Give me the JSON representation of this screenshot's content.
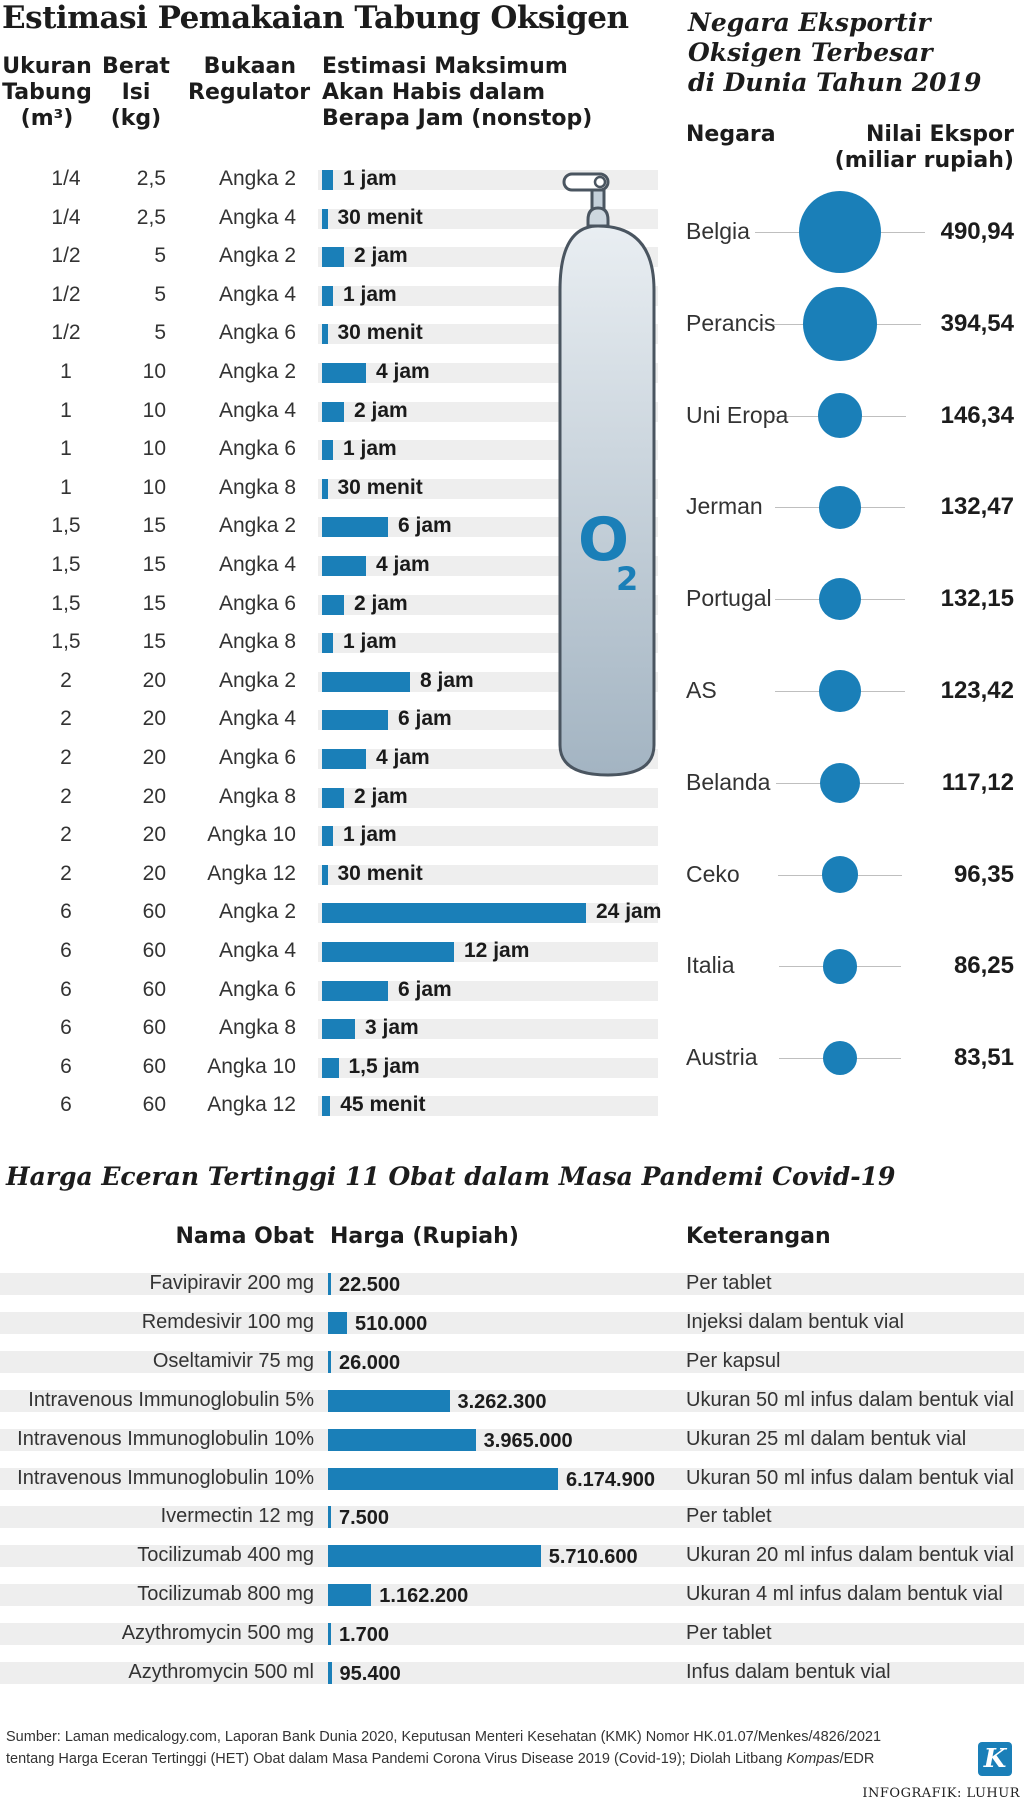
{
  "oxygen_table": {
    "title": "Estimasi Pemakaian Tabung Oksigen",
    "headers": {
      "size": [
        "Ukuran",
        "Tabung",
        "(m³)"
      ],
      "weight": [
        "Berat",
        "Isi",
        "(kg)"
      ],
      "regulator": [
        "Bukaan",
        "Regulator"
      ],
      "estimate": [
        "Estimasi Maksimum",
        "Akan Habis dalam",
        "Berapa Jam (nonstop)"
      ]
    },
    "rows": [
      {
        "size": "1/4",
        "weight": "2,5",
        "regulator": "Angka 2",
        "label": "1 jam",
        "hours": 1
      },
      {
        "size": "1/4",
        "weight": "2,5",
        "regulator": "Angka 4",
        "label": "30 menit",
        "hours": 0.5
      },
      {
        "size": "1/2",
        "weight": "5",
        "regulator": "Angka 2",
        "label": "2 jam",
        "hours": 2
      },
      {
        "size": "1/2",
        "weight": "5",
        "regulator": "Angka 4",
        "label": "1 jam",
        "hours": 1
      },
      {
        "size": "1/2",
        "weight": "5",
        "regulator": "Angka 6",
        "label": "30 menit",
        "hours": 0.5
      },
      {
        "size": "1",
        "weight": "10",
        "regulator": "Angka 2",
        "label": "4 jam",
        "hours": 4
      },
      {
        "size": "1",
        "weight": "10",
        "regulator": "Angka 4",
        "label": "2 jam",
        "hours": 2
      },
      {
        "size": "1",
        "weight": "10",
        "regulator": "Angka 6",
        "label": "1 jam",
        "hours": 1
      },
      {
        "size": "1",
        "weight": "10",
        "regulator": "Angka 8",
        "label": "30 menit",
        "hours": 0.5
      },
      {
        "size": "1,5",
        "weight": "15",
        "regulator": "Angka 2",
        "label": "6 jam",
        "hours": 6
      },
      {
        "size": "1,5",
        "weight": "15",
        "regulator": "Angka 4",
        "label": "4 jam",
        "hours": 4
      },
      {
        "size": "1,5",
        "weight": "15",
        "regulator": "Angka 6",
        "label": "2 jam",
        "hours": 2
      },
      {
        "size": "1,5",
        "weight": "15",
        "regulator": "Angka 8",
        "label": "1 jam",
        "hours": 1
      },
      {
        "size": "2",
        "weight": "20",
        "regulator": "Angka 2",
        "label": "8 jam",
        "hours": 8
      },
      {
        "size": "2",
        "weight": "20",
        "regulator": "Angka 4",
        "label": "6 jam",
        "hours": 6
      },
      {
        "size": "2",
        "weight": "20",
        "regulator": "Angka 6",
        "label": "4 jam",
        "hours": 4
      },
      {
        "size": "2",
        "weight": "20",
        "regulator": "Angka 8",
        "label": "2 jam",
        "hours": 2
      },
      {
        "size": "2",
        "weight": "20",
        "regulator": "Angka 10",
        "label": "1 jam",
        "hours": 1
      },
      {
        "size": "2",
        "weight": "20",
        "regulator": "Angka 12",
        "label": "30 menit",
        "hours": 0.5
      },
      {
        "size": "6",
        "weight": "60",
        "regulator": "Angka 2",
        "label": "24 jam",
        "hours": 24
      },
      {
        "size": "6",
        "weight": "60",
        "regulator": "Angka 4",
        "label": "12 jam",
        "hours": 12
      },
      {
        "size": "6",
        "weight": "60",
        "regulator": "Angka 6",
        "label": "6 jam",
        "hours": 6
      },
      {
        "size": "6",
        "weight": "60",
        "regulator": "Angka 8",
        "label": "3 jam",
        "hours": 3
      },
      {
        "size": "6",
        "weight": "60",
        "regulator": "Angka 10",
        "label": "1,5 jam",
        "hours": 1.5
      },
      {
        "size": "6",
        "weight": "60",
        "regulator": "Angka 12",
        "label": "45 menit",
        "hours": 0.75
      }
    ],
    "tank_label": "O",
    "tank_subscript": "2"
  },
  "exporters": {
    "title": [
      "Negara Eksportir",
      "Oksigen Terbesar",
      "di Dunia Tahun 2019"
    ],
    "col_country": "Negara",
    "col_value": [
      "Nilai Ekspor",
      "(miliar rupiah)"
    ],
    "rows": [
      {
        "country": "Belgia",
        "label": "490,94",
        "value": 490.94
      },
      {
        "country": "Perancis",
        "label": "394,54",
        "value": 394.54
      },
      {
        "country": "Uni Eropa",
        "label": "146,34",
        "value": 146.34
      },
      {
        "country": "Jerman",
        "label": "132,47",
        "value": 132.47
      },
      {
        "country": "Portugal",
        "label": "132,15",
        "value": 132.15
      },
      {
        "country": "AS",
        "label": "123,42",
        "value": 123.42
      },
      {
        "country": "Belanda",
        "label": "117,12",
        "value": 117.12
      },
      {
        "country": "Ceko",
        "label": "96,35",
        "value": 96.35
      },
      {
        "country": "Italia",
        "label": "86,25",
        "value": 86.25
      },
      {
        "country": "Austria",
        "label": "83,51",
        "value": 83.51
      }
    ]
  },
  "medicines": {
    "title": "Harga Eceran Tertinggi 11 Obat dalam Masa Pandemi Covid-19",
    "col_name": "Nama Obat",
    "col_price": "Harga (Rupiah)",
    "col_note": "Keterangan",
    "rows": [
      {
        "name": "Favipiravir 200 mg",
        "label": "22.500",
        "price": 22500,
        "note": "Per tablet"
      },
      {
        "name": "Remdesivir 100 mg",
        "label": "510.000",
        "price": 510000,
        "note": "Injeksi dalam bentuk vial"
      },
      {
        "name": "Oseltamivir 75 mg",
        "label": "26.000",
        "price": 26000,
        "note": "Per kapsul"
      },
      {
        "name": "Intravenous Immunoglobulin 5%",
        "label": "3.262.300",
        "price": 3262300,
        "note": "Ukuran 50 ml infus dalam bentuk vial"
      },
      {
        "name": "Intravenous Immunoglobulin 10%",
        "label": "3.965.000",
        "price": 3965000,
        "note": "Ukuran 25 ml dalam bentuk vial"
      },
      {
        "name": "Intravenous Immunoglobulin 10%",
        "label": "6.174.900",
        "price": 6174900,
        "note": "Ukuran 50 ml infus dalam bentuk vial"
      },
      {
        "name": "Ivermectin 12 mg",
        "label": "7.500",
        "price": 7500,
        "note": "Per tablet"
      },
      {
        "name": "Tocilizumab 400 mg",
        "label": "5.710.600",
        "price": 5710600,
        "note": "Ukuran 20 ml infus dalam bentuk vial"
      },
      {
        "name": "Tocilizumab 800 mg",
        "label": "1.162.200",
        "price": 1162200,
        "note": "Ukuran 4 ml infus dalam bentuk vial"
      },
      {
        "name": "Azythromycin 500 mg",
        "label": "1.700",
        "price": 1700,
        "note": "Per tablet"
      },
      {
        "name": "Azythromycin 500 ml",
        "label": "95.400",
        "price": 95400,
        "note": "Infus dalam bentuk vial"
      }
    ]
  },
  "chart_data": [
    {
      "type": "bar",
      "title": "Estimasi Pemakaian Tabung Oksigen",
      "orientation": "horizontal",
      "xlabel": "Estimasi Maksimum Akan Habis dalam Berapa Jam (nonstop)",
      "unit": "jam",
      "values": [
        1,
        0.5,
        2,
        1,
        0.5,
        4,
        2,
        1,
        0.5,
        6,
        4,
        2,
        1,
        8,
        6,
        4,
        2,
        1,
        0.5,
        24,
        12,
        6,
        3,
        1.5,
        0.75
      ]
    },
    {
      "type": "scatter",
      "title": "Negara Eksportir Oksigen Terbesar di Dunia Tahun 2019",
      "categories": [
        "Belgia",
        "Perancis",
        "Uni Eropa",
        "Jerman",
        "Portugal",
        "AS",
        "Belanda",
        "Ceko",
        "Italia",
        "Austria"
      ],
      "values": [
        490.94,
        394.54,
        146.34,
        132.47,
        132.15,
        123.42,
        117.12,
        96.35,
        86.25,
        83.51
      ],
      "ylabel": "Nilai Ekspor (miliar rupiah)"
    },
    {
      "type": "bar",
      "title": "Harga Eceran Tertinggi 11 Obat dalam Masa Pandemi Covid-19",
      "orientation": "horizontal",
      "categories": [
        "Favipiravir 200 mg",
        "Remdesivir 100 mg",
        "Oseltamivir 75 mg",
        "Intravenous Immunoglobulin 5%",
        "Intravenous Immunoglobulin 10%",
        "Intravenous Immunoglobulin 10%",
        "Ivermectin 12 mg",
        "Tocilizumab 400 mg",
        "Tocilizumab 800 mg",
        "Azythromycin 500 mg",
        "Azythromycin 500 ml"
      ],
      "values": [
        22500,
        510000,
        26000,
        3262300,
        3965000,
        6174900,
        7500,
        5710600,
        1162200,
        1700,
        95400
      ],
      "xlabel": "Harga (Rupiah)"
    }
  ],
  "footer": {
    "source_line1": "Sumber: Laman medicalogy.com, Laporan Bank Dunia 2020, Keputusan Menteri Kesehatan (KMK) Nomor HK.01.07/Menkes/4826/2021",
    "source_line2": "tentang Harga Eceran Tertinggi (HET) Obat dalam Masa Pandemi Corona Virus Disease 2019 (Covid-19); Diolah Litbang ",
    "source_italic": "Kompas",
    "source_end": "/EDR",
    "credit": "INFOGRAFIK: LUHUR",
    "logo_letter": "K"
  },
  "colors": {
    "accent": "#1a7fb8",
    "stripe": "#eeeeee",
    "tank_top": "#e4eaef",
    "tank_bottom": "#a7b7c4"
  }
}
